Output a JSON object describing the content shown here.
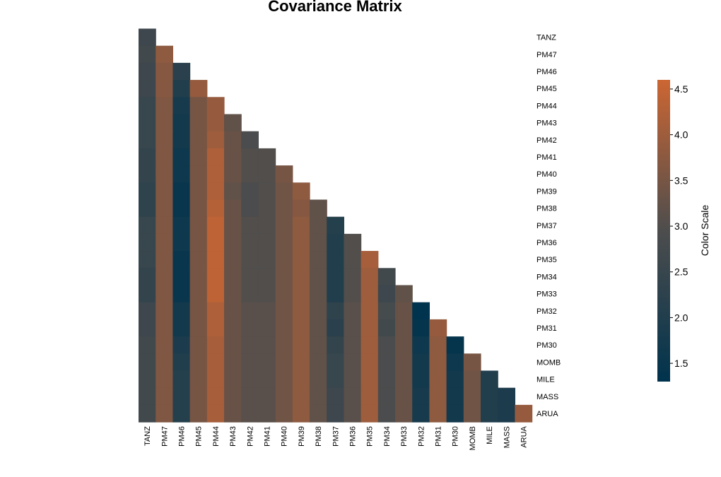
{
  "chart_data": {
    "type": "heatmap",
    "title": "Covariance Matrix",
    "labels": [
      "TANZ",
      "PM47",
      "PM46",
      "PM45",
      "PM44",
      "PM43",
      "PM42",
      "PM41",
      "PM40",
      "PM39",
      "PM38",
      "PM37",
      "PM36",
      "PM35",
      "PM34",
      "PM33",
      "PM32",
      "PM31",
      "PM30",
      "MOMB",
      "MILE",
      "MASS",
      "ARUA"
    ],
    "matrix": [
      [
        2.6
      ],
      [
        2.7,
        3.8
      ],
      [
        2.6,
        3.7,
        2.2
      ],
      [
        2.6,
        3.7,
        2.0,
        3.9
      ],
      [
        2.5,
        3.6,
        1.8,
        3.5,
        3.9
      ],
      [
        2.5,
        3.6,
        1.7,
        3.5,
        3.9,
        3.2
      ],
      [
        2.5,
        3.6,
        1.7,
        3.5,
        4.0,
        3.3,
        2.9
      ],
      [
        2.4,
        3.6,
        1.6,
        3.5,
        4.2,
        3.3,
        3.0,
        3.0
      ],
      [
        2.4,
        3.6,
        1.6,
        3.5,
        4.2,
        3.3,
        3.0,
        3.0,
        3.5
      ],
      [
        2.3,
        3.6,
        1.5,
        3.5,
        4.2,
        3.2,
        2.9,
        3.0,
        3.4,
        3.8
      ],
      [
        2.3,
        3.6,
        1.5,
        3.5,
        4.3,
        3.3,
        2.9,
        3.0,
        3.4,
        3.7,
        3.2
      ],
      [
        2.5,
        3.6,
        1.6,
        3.5,
        4.4,
        3.3,
        3.0,
        3.0,
        3.4,
        3.8,
        3.2,
        2.1
      ],
      [
        2.5,
        3.6,
        1.6,
        3.5,
        4.4,
        3.3,
        3.0,
        3.0,
        3.4,
        3.8,
        3.2,
        2.0,
        3.0
      ],
      [
        2.5,
        3.6,
        1.5,
        3.5,
        4.4,
        3.3,
        3.0,
        3.0,
        3.4,
        3.8,
        3.2,
        2.0,
        3.0,
        4.1
      ],
      [
        2.4,
        3.6,
        1.5,
        3.5,
        4.4,
        3.3,
        3.0,
        3.0,
        3.4,
        3.8,
        3.2,
        2.0,
        3.0,
        4.0,
        2.7
      ],
      [
        2.4,
        3.6,
        1.5,
        3.5,
        4.4,
        3.3,
        3.0,
        3.0,
        3.4,
        3.8,
        3.2,
        2.0,
        3.0,
        4.0,
        2.6,
        3.2
      ],
      [
        2.6,
        3.6,
        1.7,
        3.5,
        4.2,
        3.3,
        3.1,
        3.1,
        3.4,
        3.8,
        3.2,
        2.3,
        3.1,
        4.0,
        2.8,
        3.3,
        1.3
      ],
      [
        2.6,
        3.6,
        1.7,
        3.5,
        4.2,
        3.3,
        3.1,
        3.1,
        3.4,
        3.8,
        3.2,
        2.2,
        3.1,
        4.0,
        2.7,
        3.3,
        1.4,
        3.9
      ],
      [
        2.7,
        3.6,
        1.9,
        3.5,
        4.1,
        3.3,
        3.1,
        3.1,
        3.4,
        3.8,
        3.2,
        2.4,
        3.1,
        4.0,
        2.9,
        3.3,
        1.6,
        3.8,
        1.4
      ],
      [
        2.7,
        3.6,
        2.0,
        3.5,
        4.1,
        3.3,
        3.1,
        3.1,
        3.4,
        3.8,
        3.2,
        2.5,
        3.1,
        4.0,
        2.9,
        3.3,
        1.7,
        3.8,
        1.6,
        3.5
      ],
      [
        2.7,
        3.6,
        2.1,
        3.5,
        4.1,
        3.3,
        3.1,
        3.1,
        3.4,
        3.8,
        3.2,
        2.5,
        3.1,
        4.0,
        2.9,
        3.3,
        1.7,
        3.8,
        1.7,
        3.4,
        2.0
      ],
      [
        2.7,
        3.6,
        2.1,
        3.5,
        4.1,
        3.3,
        3.1,
        3.1,
        3.4,
        3.8,
        3.2,
        2.6,
        3.1,
        4.0,
        2.9,
        3.3,
        1.8,
        3.8,
        1.7,
        3.4,
        2.0,
        1.9
      ],
      [
        2.7,
        3.6,
        2.1,
        3.5,
        4.1,
        3.3,
        3.1,
        3.1,
        3.4,
        3.8,
        3.2,
        2.6,
        3.1,
        4.0,
        2.9,
        3.3,
        1.8,
        3.8,
        1.7,
        3.4,
        2.0,
        1.9,
        3.9
      ]
    ],
    "color_scale": {
      "label": "Color Scale",
      "min": 1.3,
      "max": 4.6,
      "ticks": [
        1.5,
        2.0,
        2.5,
        3.0,
        3.5,
        4.0,
        4.5
      ],
      "tick_labels": [
        "1.5",
        "2.0",
        "2.5",
        "3.0",
        "3.5",
        "4.0",
        "4.5"
      ],
      "low_color": "#00334D",
      "mid_color": "#4D4D4D",
      "high_color": "#CC6633"
    }
  }
}
